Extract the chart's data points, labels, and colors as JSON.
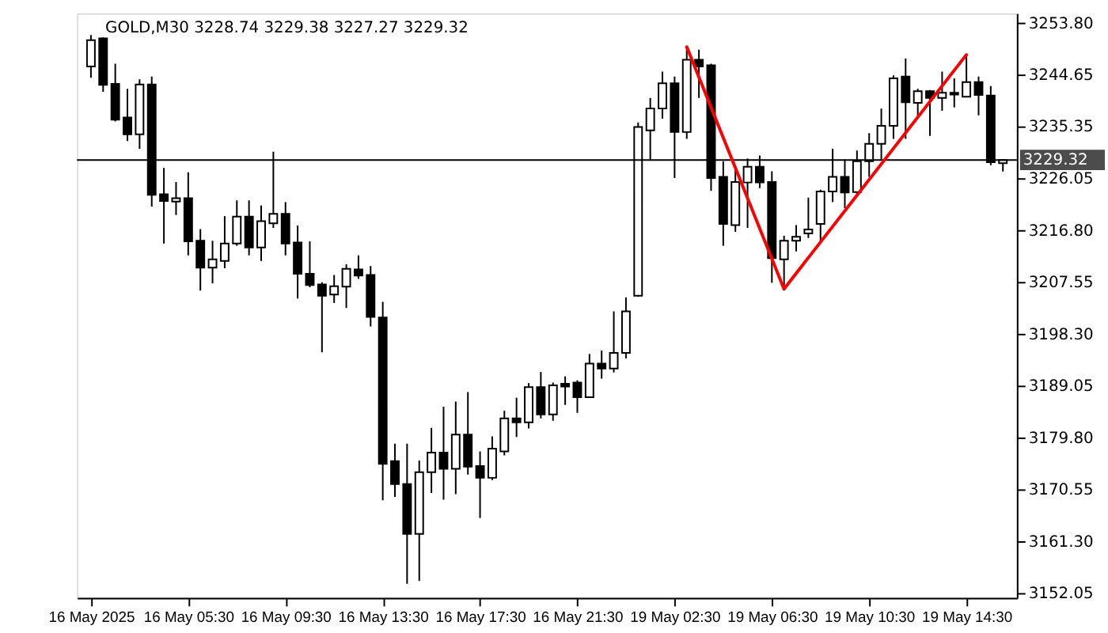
{
  "chart_data": {
    "type": "candlestick",
    "title": "GOLD,M30  3228.74 3229.38 3227.27 3229.32",
    "categories": [
      "16 May 2025",
      null,
      null,
      null,
      null,
      null,
      null,
      null,
      "16 May 05:30",
      null,
      null,
      null,
      null,
      null,
      null,
      null,
      "16 May 09:30",
      null,
      null,
      null,
      null,
      null,
      null,
      null,
      "16 May 13:30",
      null,
      null,
      null,
      null,
      null,
      null,
      null,
      "16 May 17:30",
      null,
      null,
      null,
      null,
      null,
      null,
      null,
      "16 May 21:30",
      null,
      null,
      null,
      null,
      null,
      null,
      null,
      "19 May 02:30",
      null,
      null,
      null,
      null,
      null,
      null,
      null,
      "19 May 06:30",
      null,
      null,
      null,
      null,
      null,
      null,
      null,
      "19 May 10:30",
      null,
      null,
      null,
      null,
      null,
      null,
      null,
      "19 May 14:30",
      null,
      null,
      null
    ],
    "ohlc": [
      [
        3246.0,
        3251.6,
        3244.0,
        3250.7
      ],
      [
        3251.0,
        3251.2,
        3241.5,
        3242.7
      ],
      [
        3242.9,
        3246.5,
        3236.2,
        3236.5
      ],
      [
        3236.9,
        3242.0,
        3232.7,
        3233.9
      ],
      [
        3233.9,
        3243.7,
        3231.3,
        3242.8
      ],
      [
        3242.8,
        3244.2,
        3221.0,
        3223.1
      ],
      [
        3223.2,
        3227.9,
        3214.4,
        3222.0
      ],
      [
        3221.9,
        3225.4,
        3219.5,
        3222.5
      ],
      [
        3222.5,
        3227.1,
        3212.3,
        3214.8
      ],
      [
        3214.9,
        3217.0,
        3206.0,
        3210.1
      ],
      [
        3210.1,
        3214.9,
        3207.3,
        3211.6
      ],
      [
        3211.3,
        3219.3,
        3210.0,
        3214.4
      ],
      [
        3214.4,
        3222.1,
        3214.0,
        3219.2
      ],
      [
        3219.2,
        3222.1,
        3212.3,
        3213.7
      ],
      [
        3213.7,
        3221.2,
        3211.3,
        3218.4
      ],
      [
        3218.0,
        3230.8,
        3217.2,
        3219.7
      ],
      [
        3219.7,
        3221.8,
        3212.3,
        3214.4
      ],
      [
        3214.6,
        3217.6,
        3204.6,
        3209.0
      ],
      [
        3209.0,
        3214.8,
        3206.6,
        3207.0
      ],
      [
        3207.1,
        3207.5,
        3195.0,
        3205.1
      ],
      [
        3205.3,
        3208.8,
        3203.8,
        3206.8
      ],
      [
        3206.7,
        3210.7,
        3202.9,
        3209.9
      ],
      [
        3209.8,
        3212.3,
        3208.1,
        3208.7
      ],
      [
        3208.8,
        3210.4,
        3199.6,
        3201.3
      ],
      [
        3201.2,
        3204.0,
        3168.6,
        3175.1
      ],
      [
        3175.6,
        3178.7,
        3169.2,
        3171.5
      ],
      [
        3171.5,
        3178.7,
        3153.7,
        3162.6
      ],
      [
        3162.6,
        3175.7,
        3154.2,
        3173.6
      ],
      [
        3173.6,
        3181.5,
        3169.9,
        3177.1
      ],
      [
        3177.1,
        3185.3,
        3168.7,
        3174.2
      ],
      [
        3174.2,
        3186.2,
        3169.7,
        3180.3
      ],
      [
        3180.3,
        3187.9,
        3173.2,
        3174.6
      ],
      [
        3174.7,
        3177.3,
        3165.4,
        3172.6
      ],
      [
        3172.6,
        3180.0,
        3172.2,
        3177.8
      ],
      [
        3177.3,
        3184.6,
        3176.6,
        3183.2
      ],
      [
        3183.2,
        3186.9,
        3179.9,
        3182.5
      ],
      [
        3182.5,
        3189.5,
        3181.4,
        3188.8
      ],
      [
        3188.8,
        3191.5,
        3183.2,
        3183.9
      ],
      [
        3183.9,
        3189.6,
        3182.8,
        3189.1
      ],
      [
        3189.4,
        3190.7,
        3185.6,
        3188.9
      ],
      [
        3189.6,
        3190.0,
        3184.2,
        3187.0
      ],
      [
        3187.0,
        3194.7,
        3187.0,
        3193.0
      ],
      [
        3193.0,
        3195.3,
        3190.3,
        3192.1
      ],
      [
        3192.1,
        3202.3,
        3191.4,
        3194.9
      ],
      [
        3194.9,
        3204.8,
        3193.9,
        3202.3
      ],
      [
        3205.1,
        3236.0,
        3204.9,
        3235.2
      ],
      [
        3234.6,
        3240.4,
        3229.4,
        3238.5
      ],
      [
        3238.5,
        3245.1,
        3236.7,
        3243.0
      ],
      [
        3243.0,
        3244.2,
        3226.1,
        3234.3
      ],
      [
        3234.3,
        3249.3,
        3233.1,
        3247.2
      ],
      [
        3247.2,
        3249.0,
        3240.4,
        3246.0
      ],
      [
        3246.2,
        3246.5,
        3223.8,
        3226.1
      ],
      [
        3226.3,
        3229.1,
        3214.0,
        3217.9
      ],
      [
        3217.7,
        3227.7,
        3216.5,
        3225.4
      ],
      [
        3225.3,
        3229.6,
        3217.2,
        3228.1
      ],
      [
        3228.1,
        3230.1,
        3224.3,
        3225.3
      ],
      [
        3225.4,
        3227.3,
        3207.4,
        3211.8
      ],
      [
        3211.6,
        3215.8,
        3206.4,
        3214.9
      ],
      [
        3214.9,
        3217.7,
        3213.0,
        3215.6
      ],
      [
        3216.2,
        3222.6,
        3215.4,
        3216.9
      ],
      [
        3217.9,
        3224.0,
        3214.4,
        3223.7
      ],
      [
        3223.7,
        3231.3,
        3221.8,
        3226.3
      ],
      [
        3226.3,
        3229.4,
        3220.7,
        3223.5
      ],
      [
        3223.6,
        3231.0,
        3223.2,
        3229.1
      ],
      [
        3229.1,
        3234.1,
        3226.3,
        3232.2
      ],
      [
        3232.2,
        3238.5,
        3229.4,
        3235.4
      ],
      [
        3235.4,
        3244.4,
        3233.1,
        3243.9
      ],
      [
        3244.2,
        3247.4,
        3233.1,
        3239.6
      ],
      [
        3239.5,
        3242.0,
        3237.0,
        3241.6
      ],
      [
        3241.6,
        3241.8,
        3233.6,
        3240.4
      ],
      [
        3240.4,
        3245.1,
        3238.1,
        3241.3
      ],
      [
        3241.3,
        3243.9,
        3238.7,
        3241.0
      ],
      [
        3240.6,
        3247.9,
        3240.6,
        3243.2
      ],
      [
        3243.2,
        3244.2,
        3237.3,
        3240.9
      ],
      [
        3240.8,
        3242.5,
        3228.4,
        3228.9
      ],
      [
        3228.74,
        3229.38,
        3227.27,
        3229.32
      ]
    ],
    "series": [
      {
        "type": "line",
        "color": "#ff0000",
        "values": [
          null,
          null,
          null,
          null,
          null,
          null,
          null,
          null,
          null,
          null,
          null,
          null,
          null,
          null,
          null,
          null,
          null,
          null,
          null,
          null,
          null,
          null,
          null,
          null,
          null,
          null,
          null,
          null,
          null,
          null,
          null,
          null,
          null,
          null,
          null,
          null,
          null,
          null,
          null,
          null,
          null,
          null,
          null,
          null,
          null,
          null,
          null,
          null,
          null,
          3249.5,
          null,
          null,
          null,
          null,
          null,
          null,
          null,
          3206.3,
          null,
          null,
          null,
          null,
          null,
          null,
          null,
          null,
          null,
          null,
          null,
          null,
          null,
          null,
          3248.1,
          null,
          null,
          null
        ]
      }
    ],
    "ylim": [
      3151.2,
      3255.5
    ],
    "yticks": [
      {
        "value": 3152.05,
        "label": "3152.05"
      },
      {
        "value": 3161.3,
        "label": "3161.30"
      },
      {
        "value": 3170.55,
        "label": "3170.55"
      },
      {
        "value": 3179.8,
        "label": "3179.80"
      },
      {
        "value": 3189.05,
        "label": "3189.05"
      },
      {
        "value": 3198.3,
        "label": "3198.30"
      },
      {
        "value": 3207.55,
        "label": "3207.55"
      },
      {
        "value": 3216.8,
        "label": "3216.80"
      },
      {
        "value": 3226.05,
        "label": "3226.05"
      },
      {
        "value": 3235.35,
        "label": "3235.35"
      },
      {
        "value": 3244.65,
        "label": "3244.65"
      },
      {
        "value": 3253.8,
        "label": "3253.80"
      }
    ],
    "ref_lines": [
      {
        "axis": "y",
        "value": 3229.32,
        "label": "3229.32",
        "color": "#000000"
      }
    ],
    "grid": false
  }
}
